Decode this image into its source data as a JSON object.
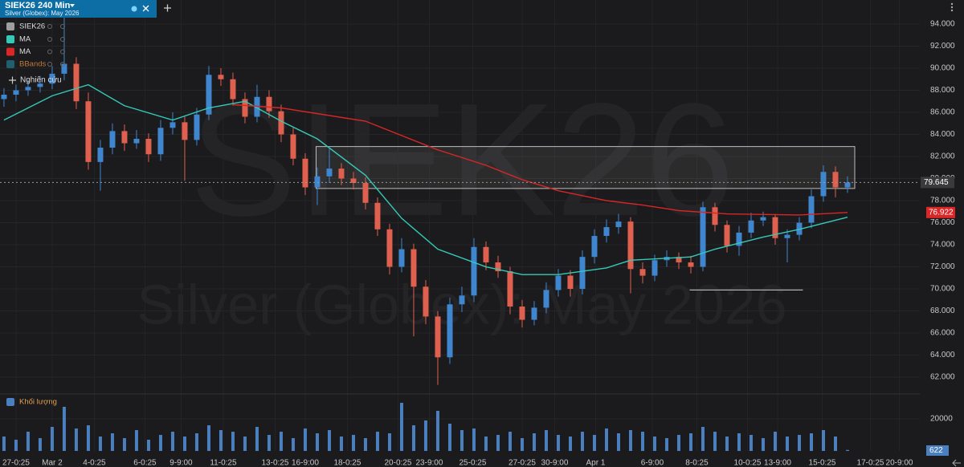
{
  "chart_data": {
    "type": "candlestick",
    "title": "SIEK26 240 Min",
    "subtitle": "Silver (Globex): May 2026",
    "symbol": "SIEK26",
    "symbol_color": "#9e9e9e",
    "studies": [
      {
        "name": "BBands",
        "color": "#c07a3a"
      }
    ],
    "add_study": "Nghiên cứu",
    "up_color": "#3f86cf",
    "down_color": "#e0604f",
    "xlim": [
      -0.33,
      76
    ],
    "ylim": [
      60.55,
      96.18
    ],
    "grid": true,
    "yticks": [
      {
        "value": 62,
        "label": "62.000"
      },
      {
        "value": 64,
        "label": "64.000"
      },
      {
        "value": 66,
        "label": "66.000"
      },
      {
        "value": 68,
        "label": "68.000"
      },
      {
        "value": 70,
        "label": "70.000"
      },
      {
        "value": 72,
        "label": "72.000"
      },
      {
        "value": 74,
        "label": "74.000"
      },
      {
        "value": 76,
        "label": "76.000"
      },
      {
        "value": 78,
        "label": "78.000"
      },
      {
        "value": 80,
        "label": "80.000"
      },
      {
        "value": 82,
        "label": "82.000"
      },
      {
        "value": 84,
        "label": "84.000"
      },
      {
        "value": 86,
        "label": "86.000"
      },
      {
        "value": 88,
        "label": "88.000"
      },
      {
        "value": 90,
        "label": "90.000"
      },
      {
        "value": 92,
        "label": "92.000"
      },
      {
        "value": 94,
        "label": "94.000"
      }
    ],
    "xticks": [
      {
        "value": 1,
        "label": "27-0:25"
      },
      {
        "value": 4,
        "label": "Mar 2"
      },
      {
        "value": 7.5,
        "label": "4-0:25"
      },
      {
        "value": 11.7,
        "label": "6-0:25"
      },
      {
        "value": 14.7,
        "label": "9-9:00"
      },
      {
        "value": 18.2,
        "label": "11-0:25"
      },
      {
        "value": 22.5,
        "label": "13-0:25"
      },
      {
        "value": 25,
        "label": "16-9:00"
      },
      {
        "value": 28.5,
        "label": "18-0:25"
      },
      {
        "value": 32.7,
        "label": "20-0:25"
      },
      {
        "value": 35.3,
        "label": "23-9:00"
      },
      {
        "value": 38.9,
        "label": "25-0:25"
      },
      {
        "value": 43,
        "label": "27-0:25"
      },
      {
        "value": 45.7,
        "label": "30-9:00"
      },
      {
        "value": 49.1,
        "label": "Apr 1"
      },
      {
        "value": 53.8,
        "label": "6-9:00"
      },
      {
        "value": 57.5,
        "label": "8-0:25"
      },
      {
        "value": 61.7,
        "label": "10-0:25"
      },
      {
        "value": 64.2,
        "label": "13-9:00"
      },
      {
        "value": 67.9,
        "label": "15-0:25"
      },
      {
        "value": 71.9,
        "label": "17-0:25"
      },
      {
        "value": 74.3,
        "label": "20-9:00"
      }
    ],
    "open": [
      87.2,
      87.6,
      88.0,
      88.3,
      88.6,
      89.5,
      90.4,
      87.0,
      81.5,
      82.8,
      84.3,
      83.2,
      83.6,
      82.2,
      84.6,
      85.1,
      83.5,
      85.8,
      89.4,
      89.0,
      87.2,
      85.6,
      87.4,
      86.1,
      84.0,
      81.8,
      79.2,
      80.2,
      80.9,
      80.0,
      79.6,
      77.8,
      75.4,
      72.0,
      73.6,
      70.2,
      67.5,
      63.8,
      68.6,
      69.4,
      73.8,
      72.4,
      71.6,
      68.4,
      67.2,
      68.3,
      69.9,
      71.2,
      70.0,
      72.9,
      74.8,
      75.6,
      76.1,
      71.8,
      71.2,
      72.6,
      72.9,
      72.4,
      72.0,
      77.4,
      75.8,
      73.9,
      75.1,
      76.2,
      76.5,
      74.6,
      74.9,
      76.0,
      78.4,
      80.6,
      79.2
    ],
    "high": [
      88.2,
      88.5,
      88.9,
      89.3,
      90.2,
      94.6,
      91.0,
      87.8,
      83.5,
      85.0,
      84.9,
      84.4,
      84.1,
      85.3,
      86.0,
      85.6,
      86.4,
      90.2,
      90.0,
      89.6,
      87.8,
      88.5,
      88.0,
      86.7,
      84.6,
      82.3,
      81.0,
      82.7,
      81.4,
      80.6,
      80.1,
      78.3,
      75.9,
      74.6,
      74.1,
      70.8,
      68.0,
      69.2,
      70.2,
      74.6,
      74.3,
      73.0,
      72.0,
      69.0,
      68.9,
      70.6,
      71.8,
      71.7,
      73.5,
      75.4,
      76.3,
      76.8,
      76.5,
      72.4,
      73.1,
      73.5,
      73.3,
      73.0,
      77.9,
      77.8,
      76.2,
      75.7,
      76.9,
      77.0,
      76.8,
      75.4,
      76.5,
      79.0,
      81.2,
      81.1,
      80.2
    ],
    "low": [
      86.5,
      87.0,
      87.5,
      87.8,
      88.1,
      88.9,
      86.3,
      80.8,
      78.9,
      82.2,
      82.5,
      82.7,
      81.5,
      81.6,
      84.0,
      79.8,
      83.0,
      85.3,
      88.4,
      86.6,
      85.0,
      85.1,
      85.5,
      83.3,
      81.2,
      78.5,
      77.6,
      79.6,
      79.4,
      79.0,
      77.2,
      74.8,
      71.3,
      71.5,
      65.7,
      66.8,
      61.3,
      63.2,
      67.9,
      68.8,
      71.7,
      71.0,
      67.7,
      66.5,
      66.7,
      67.8,
      69.3,
      69.3,
      69.5,
      72.3,
      74.2,
      75.0,
      69.6,
      70.5,
      70.7,
      72.0,
      71.8,
      71.4,
      71.6,
      75.2,
      73.3,
      73.0,
      74.6,
      75.7,
      74.0,
      72.4,
      74.4,
      75.5,
      77.9,
      78.3,
      78.7
    ],
    "close": [
      87.6,
      88.0,
      88.3,
      88.6,
      89.5,
      90.4,
      87.0,
      81.5,
      82.8,
      84.3,
      83.2,
      83.6,
      82.2,
      84.6,
      85.1,
      83.5,
      85.8,
      89.4,
      89.0,
      87.2,
      85.6,
      87.4,
      86.1,
      84.0,
      81.8,
      79.2,
      80.2,
      80.9,
      80.0,
      79.6,
      77.8,
      75.4,
      72.0,
      73.6,
      70.2,
      67.5,
      63.8,
      68.6,
      69.4,
      73.8,
      72.4,
      71.6,
      68.4,
      67.2,
      68.3,
      69.9,
      71.2,
      70.0,
      72.9,
      74.8,
      75.6,
      76.1,
      71.8,
      71.2,
      72.6,
      72.9,
      72.4,
      72.0,
      77.4,
      75.8,
      73.9,
      75.1,
      76.2,
      76.5,
      74.6,
      74.9,
      76.0,
      78.4,
      80.6,
      79.2,
      79.645
    ],
    "series": [
      {
        "name": "MA",
        "color": "#35c9b8",
        "x": [
          0,
          4,
          7,
          10,
          14,
          17,
          20,
          23,
          26,
          30,
          33,
          36,
          40,
          43,
          46,
          50,
          52,
          57,
          59,
          63,
          66,
          70
        ],
        "values": [
          85.3,
          87.5,
          88.5,
          86.6,
          85.3,
          86.4,
          87.0,
          85.2,
          83.6,
          80.3,
          76.4,
          73.6,
          72.0,
          71.3,
          71.3,
          71.9,
          72.6,
          72.9,
          73.6,
          74.7,
          75.4,
          76.5
        ]
      },
      {
        "name": "MA",
        "color": "#d92626",
        "x": [
          19,
          23,
          30,
          36,
          40,
          43,
          46,
          50,
          53,
          56,
          60,
          66,
          70
        ],
        "values": [
          86.7,
          86.4,
          85.2,
          82.6,
          81.2,
          79.9,
          78.9,
          78.0,
          77.6,
          77.1,
          76.8,
          76.7,
          76.922
        ]
      }
    ],
    "drawings": [
      {
        "type": "rect",
        "x": [
          25.9,
          70.6
        ],
        "y": [
          79.1,
          82.9
        ]
      },
      {
        "type": "line",
        "x": [
          56.9,
          66.3
        ],
        "y": [
          69.9,
          69.9
        ]
      }
    ],
    "volume": {
      "label": "Khối lượng",
      "color": "#4a7fc0",
      "ylim": [
        0,
        35000
      ],
      "yticks": [
        20000
      ],
      "values": [
        9000,
        7000,
        12000,
        8000,
        15000,
        27500,
        14000,
        16000,
        9000,
        11000,
        8000,
        13000,
        7000,
        10000,
        12000,
        9000,
        11000,
        16000,
        13000,
        12000,
        9000,
        15000,
        10000,
        12000,
        8000,
        14000,
        11000,
        13000,
        9000,
        10000,
        8000,
        12000,
        11000,
        30000,
        16000,
        19000,
        25000,
        17000,
        13000,
        14000,
        9000,
        10000,
        12000,
        8000,
        11000,
        13000,
        10000,
        9000,
        12000,
        10000,
        14000,
        11000,
        13000,
        12000,
        9000,
        8000,
        10000,
        11000,
        15000,
        12000,
        9000,
        11000,
        10000,
        8000,
        12000,
        9000,
        10000,
        11000,
        13000,
        9000,
        622
      ]
    }
  }
}
